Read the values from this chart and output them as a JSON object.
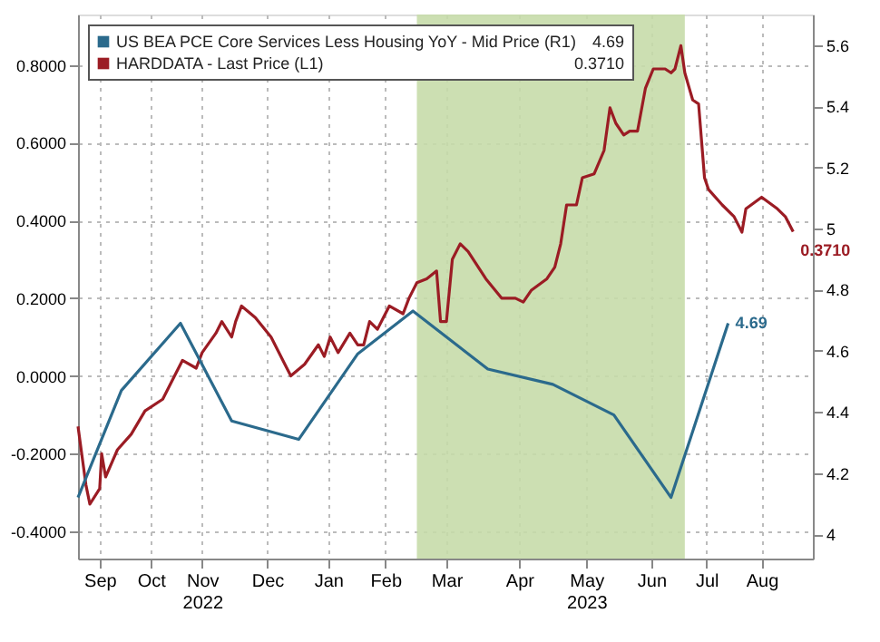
{
  "chart_data": {
    "type": "line",
    "xlim": [
      "2022-09-10",
      "2023-09-18"
    ],
    "xticks": [
      {
        "value": "2022-09-21",
        "label": "Sep"
      },
      {
        "value": "2022-10-17",
        "label": "Oct"
      },
      {
        "value": "2022-11-12",
        "label": "Nov\n2022"
      },
      {
        "value": "2022-12-15",
        "label": "Dec"
      },
      {
        "value": "2023-01-15",
        "label": "Jan"
      },
      {
        "value": "2023-02-13",
        "label": "Feb"
      },
      {
        "value": "2023-03-16",
        "label": "Mar"
      },
      {
        "value": "2023-04-22",
        "label": "Apr"
      },
      {
        "value": "2023-05-26",
        "label": "May\n2023"
      },
      {
        "value": "2023-06-28",
        "label": "Jun"
      },
      {
        "value": "2023-07-26",
        "label": "Jul"
      },
      {
        "value": "2023-08-23",
        "label": "Aug"
      }
    ],
    "ylim": [
      -0.47,
      0.93
    ],
    "yticks": [
      {
        "value": -0.4,
        "label": "-0.4000"
      },
      {
        "value": -0.2,
        "label": "-0.2000"
      },
      {
        "value": 0,
        "label": "0.0000"
      },
      {
        "value": 0.2,
        "label": "0.2000"
      },
      {
        "value": 0.4,
        "label": "0.4000"
      },
      {
        "value": 0.6,
        "label": "0.6000"
      },
      {
        "value": 0.8,
        "label": "0.8000"
      }
    ],
    "y2lim": [
      3.92,
      5.7
    ],
    "y2ticks": [
      4,
      4.2,
      4.4,
      4.6,
      4.8,
      5,
      5.2,
      5.4,
      5.6
    ],
    "grid": true,
    "legend": "top left",
    "line_style": "solid",
    "marker": "none",
    "bands": [
      {
        "axis": "x",
        "from": "2023-03-01",
        "to": "2023-07-15",
        "label": null,
        "color": "#c6dcaa"
      }
    ],
    "series": [
      {
        "name": "US BEA PCE Core Services Less Housing YoY - Mid Price (R1)",
        "color": "#2b6a8c",
        "axis": "y2",
        "x": [
          "2022-09-10",
          "2022-10-02",
          "2022-11-01",
          "2022-11-27",
          "2022-12-31",
          "2023-01-30",
          "2023-02-27",
          "2023-04-06",
          "2023-05-09",
          "2023-06-09",
          "2023-07-08",
          "2023-08-06"
        ],
        "values": [
          4.12,
          4.47,
          4.69,
          4.37,
          4.31,
          4.59,
          4.73,
          4.54,
          4.49,
          4.39,
          4.12,
          4.69
        ],
        "value_labels": [
          null,
          null,
          null,
          null,
          null,
          null,
          null,
          null,
          null,
          null,
          null,
          "4.69"
        ]
      },
      {
        "name": "HARDDATA - Last Price (L1)",
        "color": "#9b1c24",
        "axis": "y",
        "x": [
          "2022-09-10",
          "2022-09-14",
          "2022-09-16",
          "2022-09-21",
          "2022-09-22",
          "2022-09-24",
          "2022-09-30",
          "2022-10-07",
          "2022-10-14",
          "2022-10-23",
          "2022-10-30",
          "2022-11-02",
          "2022-11-09",
          "2022-11-12",
          "2022-11-19",
          "2022-11-22",
          "2022-11-27",
          "2022-11-29",
          "2022-12-02",
          "2022-12-09",
          "2022-12-17",
          "2022-12-24",
          "2022-12-27",
          "2023-01-03",
          "2023-01-10",
          "2023-01-13",
          "2023-01-16",
          "2023-01-20",
          "2023-01-26",
          "2023-01-30",
          "2023-02-02",
          "2023-02-05",
          "2023-02-09",
          "2023-02-12",
          "2023-02-15",
          "2023-02-22",
          "2023-02-25",
          "2023-03-01",
          "2023-03-06",
          "2023-03-11",
          "2023-03-13",
          "2023-03-16",
          "2023-03-19",
          "2023-03-23",
          "2023-03-27",
          "2023-04-05",
          "2023-04-13",
          "2023-04-20",
          "2023-04-24",
          "2023-04-28",
          "2023-05-06",
          "2023-05-10",
          "2023-05-13",
          "2023-05-16",
          "2023-05-21",
          "2023-05-24",
          "2023-05-30",
          "2023-06-04",
          "2023-06-07",
          "2023-06-10",
          "2023-06-14",
          "2023-06-17",
          "2023-06-21",
          "2023-06-25",
          "2023-06-29",
          "2023-07-05",
          "2023-07-08",
          "2023-07-10",
          "2023-07-13",
          "2023-07-15",
          "2023-07-19",
          "2023-07-22",
          "2023-07-25",
          "2023-07-27",
          "2023-08-03",
          "2023-08-09",
          "2023-08-13",
          "2023-08-15",
          "2023-08-23",
          "2023-08-31",
          "2023-09-04",
          "2023-09-08"
        ],
        "values": [
          -0.13,
          -0.28,
          -0.33,
          -0.29,
          -0.2,
          -0.26,
          -0.19,
          -0.15,
          -0.09,
          -0.06,
          0.01,
          0.04,
          0.02,
          0.06,
          0.11,
          0.14,
          0.1,
          0.14,
          0.18,
          0.15,
          0.1,
          0.03,
          0.0,
          0.03,
          0.08,
          0.05,
          0.1,
          0.06,
          0.11,
          0.08,
          0.08,
          0.14,
          0.12,
          0.15,
          0.18,
          0.16,
          0.2,
          0.24,
          0.25,
          0.27,
          0.14,
          0.14,
          0.3,
          0.34,
          0.32,
          0.25,
          0.2,
          0.2,
          0.19,
          0.22,
          0.25,
          0.28,
          0.34,
          0.44,
          0.44,
          0.51,
          0.52,
          0.58,
          0.69,
          0.65,
          0.62,
          0.63,
          0.63,
          0.74,
          0.79,
          0.79,
          0.78,
          0.79,
          0.85,
          0.78,
          0.71,
          0.7,
          0.51,
          0.48,
          0.44,
          0.41,
          0.37,
          0.43,
          0.46,
          0.43,
          0.41,
          0.371
        ],
        "value_labels": [
          null,
          null,
          null,
          null,
          null,
          null,
          null,
          null,
          null,
          null,
          null,
          null,
          null,
          null,
          null,
          null,
          null,
          null,
          null,
          null,
          null,
          null,
          null,
          null,
          null,
          null,
          null,
          null,
          null,
          null,
          null,
          null,
          null,
          null,
          null,
          null,
          null,
          null,
          null,
          null,
          null,
          null,
          null,
          null,
          null,
          null,
          null,
          null,
          null,
          null,
          null,
          null,
          null,
          null,
          null,
          null,
          null,
          null,
          null,
          null,
          null,
          null,
          null,
          null,
          null,
          null,
          null,
          null,
          null,
          null,
          null,
          null,
          null,
          null,
          null,
          null,
          null,
          null,
          null,
          null,
          null,
          "0.3710"
        ]
      }
    ]
  }
}
